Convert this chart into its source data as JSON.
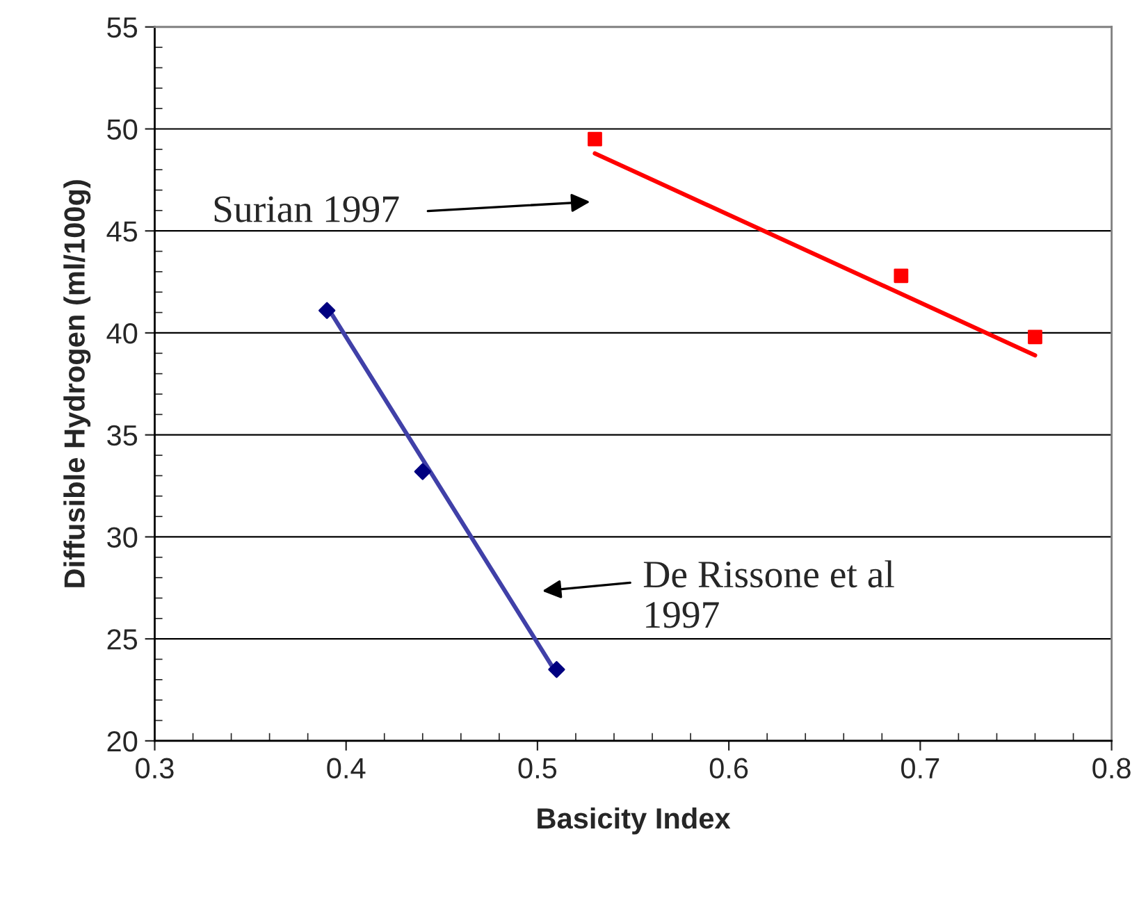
{
  "chart_data": {
    "type": "scatter",
    "xlabel": "Basicity Index",
    "ylabel": "Diffusible Hydrogen (ml/100g)",
    "xlim": [
      0.3,
      0.8
    ],
    "xticks": [
      0.3,
      0.4,
      0.5,
      0.6,
      0.7,
      0.8
    ],
    "ylim": [
      20,
      55
    ],
    "yticks": [
      20,
      25,
      30,
      35,
      40,
      45,
      50,
      55
    ],
    "grid": "y",
    "legend": false,
    "series": [
      {
        "marker": "diamond",
        "color": "#000080",
        "x": [
          0.39,
          0.44,
          0.51
        ],
        "values": [
          41.1,
          33.2,
          23.5
        ]
      },
      {
        "type": "line",
        "marker": "none",
        "line_style": "solid",
        "color": "#4040a8",
        "x": [
          0.39,
          0.51
        ],
        "values": [
          41.3,
          23.3
        ]
      },
      {
        "marker": "square",
        "color": "#ff0000",
        "x": [
          0.53,
          0.69,
          0.76
        ],
        "values": [
          49.5,
          42.8,
          39.8
        ]
      },
      {
        "type": "line",
        "marker": "none",
        "line_style": "solid",
        "color": "#ff0000",
        "x": [
          0.53,
          0.76
        ],
        "values": [
          48.8,
          38.9
        ]
      }
    ],
    "annotations": [
      "Surian 1997",
      "De Rissone et al\n1997"
    ]
  }
}
